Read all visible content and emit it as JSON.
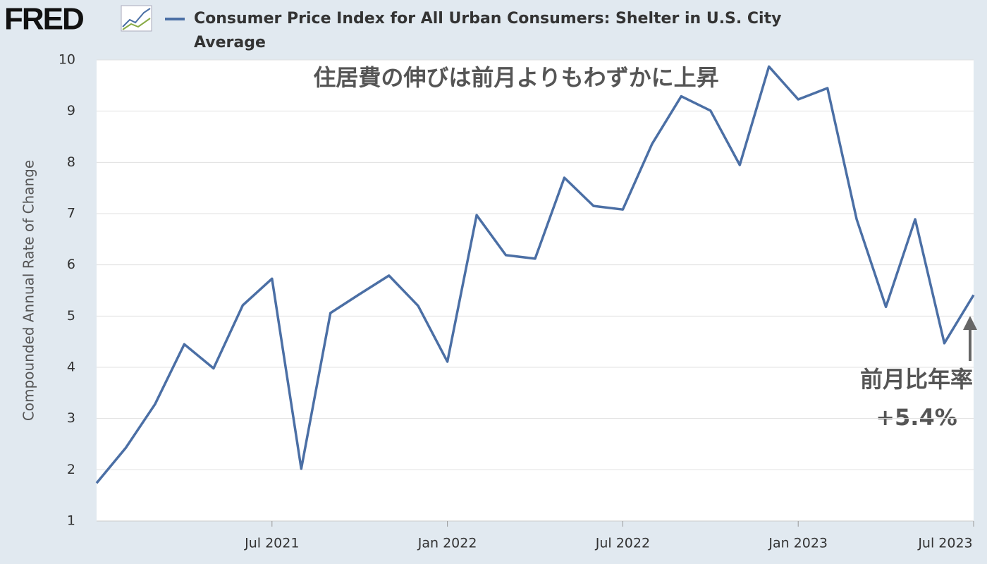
{
  "logo": "FRED",
  "chart_data": {
    "type": "line",
    "title": "住居費の伸びは前月よりもわずかに上昇",
    "y_label": "Compounded Annual Rate of Change",
    "annotations": [
      "前月比年率",
      "+5.4%"
    ],
    "x": [
      "2021-01",
      "2021-02",
      "2021-03",
      "2021-04",
      "2021-05",
      "2021-06",
      "2021-07",
      "2021-08",
      "2021-09",
      "2021-10",
      "2021-11",
      "2021-12",
      "2022-01",
      "2022-02",
      "2022-03",
      "2022-04",
      "2022-05",
      "2022-06",
      "2022-07",
      "2022-08",
      "2022-09",
      "2022-10",
      "2022-11",
      "2022-12",
      "2023-01",
      "2023-02",
      "2023-03",
      "2023-04",
      "2023-05",
      "2023-06",
      "2023-07"
    ],
    "series": [
      {
        "name": "Consumer Price Index for All Urban Consumers: Shelter in U.S. City Average",
        "color": "#4b6fa5",
        "values": [
          1.74,
          2.43,
          3.28,
          4.45,
          3.98,
          5.21,
          5.73,
          2.02,
          5.06,
          5.43,
          5.79,
          5.2,
          4.11,
          6.97,
          6.19,
          6.12,
          7.7,
          7.15,
          7.08,
          8.36,
          9.29,
          9.01,
          7.95,
          9.87,
          9.23,
          9.45,
          6.89,
          5.18,
          6.89,
          4.47,
          5.41
        ]
      }
    ],
    "xlim": [
      "2021-01",
      "2023-07"
    ],
    "xticks": [
      {
        "value": "2021-07",
        "label": "Jul 2021"
      },
      {
        "value": "2022-01",
        "label": "Jan 2022"
      },
      {
        "value": "2022-07",
        "label": "Jul 2022"
      },
      {
        "value": "2023-01",
        "label": "Jan 2023"
      },
      {
        "value": "2023-07",
        "label": "Jul 2023"
      }
    ],
    "ylim": [
      1,
      10
    ],
    "yticks": [
      1,
      2,
      3,
      4,
      5,
      6,
      7,
      8,
      9,
      10
    ],
    "grid": true
  }
}
